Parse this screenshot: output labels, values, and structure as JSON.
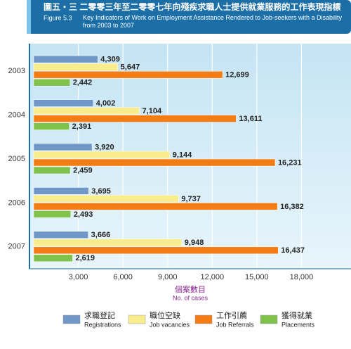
{
  "chart_data": {
    "type": "hbar",
    "title": "圖五・三 二零零三年至二零零七年向殘疾求職人士提供就業服務的工作表現指標",
    "figure_label": "Figure 5.3",
    "subtitle": "Key Indicators of Work on Employment Assistance Rendered to Job-seekers with a Disability from 2003 to 2007",
    "x_label": "個案數目",
    "x_label_en": "No. of cases",
    "categories": [
      "2003",
      "2004",
      "2005",
      "2006",
      "2007"
    ],
    "series": [
      {
        "name": "Registrations",
        "name_zh": "求職登記",
        "color": "#6f97c8",
        "values": [
          4309,
          4002,
          3920,
          3695,
          3666
        ],
        "value_labels": [
          "4,309",
          "4,002",
          "3,920",
          "3,695",
          "3,666"
        ]
      },
      {
        "name": "Job vacancies",
        "name_zh": "職位空缺",
        "color": "#f8ec8c",
        "values": [
          5647,
          7104,
          9144,
          9737,
          9948
        ],
        "value_labels": [
          "5,647",
          "7,104",
          "9,144",
          "9,737",
          "9,948"
        ]
      },
      {
        "name": "Job Referrals",
        "name_zh": "工作引薦",
        "color": "#f47c14",
        "values": [
          12699,
          13611,
          16231,
          16382,
          16437
        ],
        "value_labels": [
          "12,699",
          "13,611",
          "16,231",
          "16,382",
          "16,437"
        ]
      },
      {
        "name": "Placements",
        "name_zh": "獲得就業",
        "color": "#80c34c",
        "values": [
          2442,
          2391,
          2459,
          2493,
          2619
        ],
        "value_labels": [
          "2,442",
          "2,391",
          "2,459",
          "2,493",
          "2,619"
        ]
      }
    ],
    "xlim": [
      0,
      21000
    ],
    "xticks": [
      {
        "value": 3000,
        "label": "3,000"
      },
      {
        "value": 6000,
        "label": "6,000"
      },
      {
        "value": 9000,
        "label": "9,000"
      },
      {
        "value": 12000,
        "label": "12,000"
      },
      {
        "value": 15000,
        "label": "15,000"
      },
      {
        "value": 18000,
        "label": "18,000"
      }
    ],
    "grid": true
  }
}
